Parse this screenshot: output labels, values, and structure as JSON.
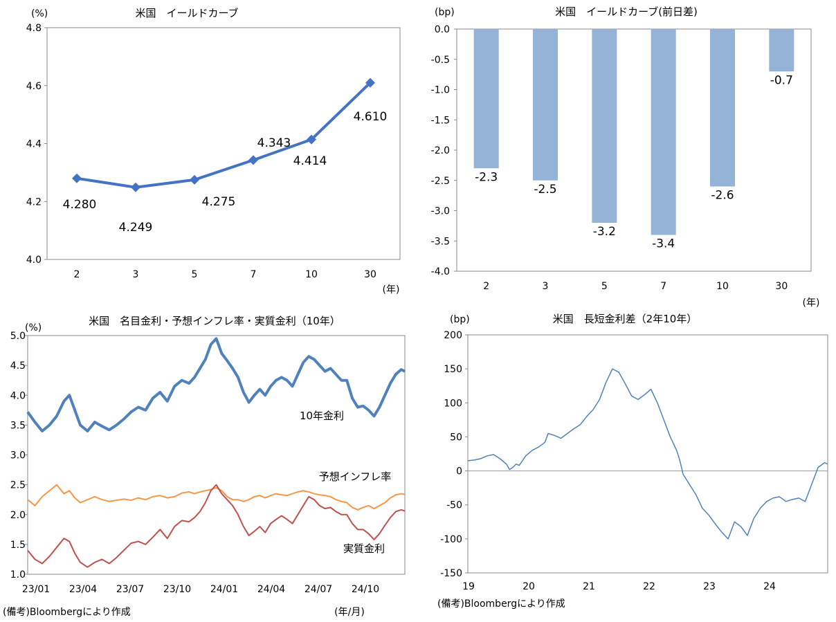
{
  "chart_data": [
    {
      "type": "line",
      "title": "米国　イールドカーブ",
      "ylabel": "(%)",
      "xlabel": "(年)",
      "categories": [
        "2",
        "3",
        "5",
        "7",
        "10",
        "30"
      ],
      "values": [
        4.28,
        4.249,
        4.275,
        4.343,
        4.414,
        4.61
      ],
      "value_labels": [
        "4.280",
        "4.249",
        "4.275",
        "4.343",
        "4.414",
        "4.610"
      ],
      "yticks": [
        "4.0",
        "4.2",
        "4.4",
        "4.6",
        "4.8"
      ],
      "ylim": [
        4.0,
        4.8
      ],
      "color": "#4472c4",
      "grid": false
    },
    {
      "type": "bar",
      "title": "米国　イールドカーブ(前日差)",
      "ylabel": "(bp)",
      "xlabel": "(年)",
      "categories": [
        "2",
        "3",
        "5",
        "7",
        "10",
        "30"
      ],
      "values": [
        -2.3,
        -2.5,
        -3.2,
        -3.4,
        -2.6,
        -0.7
      ],
      "value_labels": [
        "-2.3",
        "-2.5",
        "-3.2",
        "-3.4",
        "-2.6",
        "-0.7"
      ],
      "yticks": [
        "0.0",
        "-0.5",
        "-1.0",
        "-1.5",
        "-2.0",
        "-2.5",
        "-3.0",
        "-3.5",
        "-4.0"
      ],
      "ylim": [
        -4.0,
        0.0
      ],
      "color": "#95b3d7",
      "grid": false
    },
    {
      "type": "line",
      "title": "米国　名目金利・予想インフレ率・実質金利（10年）",
      "ylabel": "(%)",
      "xlabel": "(年/月)",
      "note": "(備考)Bloombergにより作成",
      "xticks": [
        "23/01",
        "23/04",
        "23/07",
        "23/10",
        "24/01",
        "24/04",
        "24/07",
        "24/10"
      ],
      "yticks": [
        "1.0",
        "1.5",
        "2.0",
        "2.5",
        "3.0",
        "3.5",
        "4.0",
        "4.5",
        "5.0"
      ],
      "ylim": [
        1.0,
        5.0
      ],
      "grid": false,
      "series": [
        {
          "name": "10年金利",
          "color": "#4f81bd",
          "points": [
            [
              0,
              3.72
            ],
            [
              4,
              3.55
            ],
            [
              8,
              3.4
            ],
            [
              12,
              3.5
            ],
            [
              16,
              3.65
            ],
            [
              20,
              3.9
            ],
            [
              23,
              4.0
            ],
            [
              26,
              3.75
            ],
            [
              29,
              3.5
            ],
            [
              33,
              3.4
            ],
            [
              37,
              3.55
            ],
            [
              41,
              3.48
            ],
            [
              45,
              3.42
            ],
            [
              49,
              3.5
            ],
            [
              53,
              3.6
            ],
            [
              57,
              3.72
            ],
            [
              61,
              3.8
            ],
            [
              65,
              3.75
            ],
            [
              69,
              3.95
            ],
            [
              73,
              4.05
            ],
            [
              77,
              3.9
            ],
            [
              81,
              4.15
            ],
            [
              85,
              4.25
            ],
            [
              89,
              4.2
            ],
            [
              92,
              4.3
            ],
            [
              95,
              4.45
            ],
            [
              98,
              4.6
            ],
            [
              101,
              4.85
            ],
            [
              104,
              4.95
            ],
            [
              107,
              4.7
            ],
            [
              110,
              4.58
            ],
            [
              113,
              4.45
            ],
            [
              116,
              4.3
            ],
            [
              119,
              4.05
            ],
            [
              122,
              3.88
            ],
            [
              125,
              4.0
            ],
            [
              128,
              4.1
            ],
            [
              131,
              4.0
            ],
            [
              134,
              4.15
            ],
            [
              137,
              4.25
            ],
            [
              140,
              4.3
            ],
            [
              143,
              4.25
            ],
            [
              146,
              4.15
            ],
            [
              149,
              4.35
            ],
            [
              152,
              4.55
            ],
            [
              155,
              4.65
            ],
            [
              158,
              4.6
            ],
            [
              161,
              4.5
            ],
            [
              164,
              4.4
            ],
            [
              167,
              4.45
            ],
            [
              170,
              4.35
            ],
            [
              173,
              4.25
            ],
            [
              176,
              4.25
            ],
            [
              179,
              3.95
            ],
            [
              182,
              3.8
            ],
            [
              185,
              3.82
            ],
            [
              188,
              3.75
            ],
            [
              191,
              3.65
            ],
            [
              194,
              3.8
            ],
            [
              197,
              4.0
            ],
            [
              200,
              4.2
            ],
            [
              203,
              4.35
            ],
            [
              206,
              4.43
            ],
            [
              208,
              4.4
            ]
          ]
        },
        {
          "name": "予想インフレ率",
          "color": "#f79646",
          "points": [
            [
              0,
              2.25
            ],
            [
              4,
              2.15
            ],
            [
              8,
              2.3
            ],
            [
              12,
              2.4
            ],
            [
              16,
              2.5
            ],
            [
              20,
              2.35
            ],
            [
              23,
              2.4
            ],
            [
              26,
              2.28
            ],
            [
              29,
              2.2
            ],
            [
              33,
              2.25
            ],
            [
              37,
              2.3
            ],
            [
              41,
              2.25
            ],
            [
              45,
              2.22
            ],
            [
              49,
              2.24
            ],
            [
              53,
              2.26
            ],
            [
              57,
              2.24
            ],
            [
              61,
              2.28
            ],
            [
              65,
              2.25
            ],
            [
              69,
              2.3
            ],
            [
              73,
              2.32
            ],
            [
              77,
              2.28
            ],
            [
              81,
              2.3
            ],
            [
              85,
              2.36
            ],
            [
              89,
              2.38
            ],
            [
              92,
              2.35
            ],
            [
              95,
              2.38
            ],
            [
              98,
              2.4
            ],
            [
              101,
              2.42
            ],
            [
              104,
              2.45
            ],
            [
              107,
              2.4
            ],
            [
              110,
              2.3
            ],
            [
              113,
              2.25
            ],
            [
              116,
              2.25
            ],
            [
              119,
              2.22
            ],
            [
              122,
              2.25
            ],
            [
              125,
              2.3
            ],
            [
              128,
              2.32
            ],
            [
              131,
              2.28
            ],
            [
              134,
              2.32
            ],
            [
              137,
              2.35
            ],
            [
              140,
              2.33
            ],
            [
              143,
              2.32
            ],
            [
              146,
              2.35
            ],
            [
              149,
              2.38
            ],
            [
              152,
              2.4
            ],
            [
              155,
              2.38
            ],
            [
              158,
              2.35
            ],
            [
              161,
              2.33
            ],
            [
              164,
              2.32
            ],
            [
              167,
              2.3
            ],
            [
              170,
              2.25
            ],
            [
              173,
              2.22
            ],
            [
              176,
              2.2
            ],
            [
              179,
              2.12
            ],
            [
              182,
              2.08
            ],
            [
              185,
              2.12
            ],
            [
              188,
              2.15
            ],
            [
              191,
              2.1
            ],
            [
              194,
              2.15
            ],
            [
              197,
              2.2
            ],
            [
              200,
              2.28
            ],
            [
              203,
              2.33
            ],
            [
              206,
              2.35
            ],
            [
              208,
              2.34
            ]
          ]
        },
        {
          "name": "実質金利",
          "color": "#c0504d",
          "points": [
            [
              0,
              1.4
            ],
            [
              4,
              1.25
            ],
            [
              8,
              1.18
            ],
            [
              12,
              1.3
            ],
            [
              16,
              1.45
            ],
            [
              20,
              1.6
            ],
            [
              23,
              1.55
            ],
            [
              26,
              1.35
            ],
            [
              29,
              1.2
            ],
            [
              33,
              1.12
            ],
            [
              37,
              1.2
            ],
            [
              41,
              1.25
            ],
            [
              45,
              1.18
            ],
            [
              49,
              1.28
            ],
            [
              53,
              1.4
            ],
            [
              57,
              1.52
            ],
            [
              61,
              1.55
            ],
            [
              65,
              1.5
            ],
            [
              69,
              1.62
            ],
            [
              73,
              1.75
            ],
            [
              77,
              1.6
            ],
            [
              81,
              1.8
            ],
            [
              85,
              1.9
            ],
            [
              89,
              1.88
            ],
            [
              92,
              1.95
            ],
            [
              95,
              2.05
            ],
            [
              98,
              2.2
            ],
            [
              101,
              2.4
            ],
            [
              104,
              2.5
            ],
            [
              107,
              2.35
            ],
            [
              110,
              2.25
            ],
            [
              113,
              2.15
            ],
            [
              116,
              2.0
            ],
            [
              119,
              1.8
            ],
            [
              122,
              1.65
            ],
            [
              125,
              1.72
            ],
            [
              128,
              1.8
            ],
            [
              131,
              1.7
            ],
            [
              134,
              1.85
            ],
            [
              137,
              1.92
            ],
            [
              140,
              1.98
            ],
            [
              143,
              1.92
            ],
            [
              146,
              1.85
            ],
            [
              149,
              2.0
            ],
            [
              152,
              2.15
            ],
            [
              155,
              2.3
            ],
            [
              158,
              2.25
            ],
            [
              161,
              2.15
            ],
            [
              164,
              2.1
            ],
            [
              167,
              2.12
            ],
            [
              170,
              2.05
            ],
            [
              173,
              2.0
            ],
            [
              176,
              2.0
            ],
            [
              179,
              1.85
            ],
            [
              182,
              1.75
            ],
            [
              185,
              1.75
            ],
            [
              188,
              1.68
            ],
            [
              191,
              1.58
            ],
            [
              194,
              1.68
            ],
            [
              197,
              1.82
            ],
            [
              200,
              1.95
            ],
            [
              203,
              2.05
            ],
            [
              206,
              2.08
            ],
            [
              208,
              2.06
            ]
          ]
        }
      ]
    },
    {
      "type": "line",
      "title": "米国　長短金利差（2年10年）",
      "ylabel": "(bp)",
      "note": "(備考)Bloombergにより作成",
      "xticks": [
        "19",
        "20",
        "21",
        "22",
        "23",
        "24"
      ],
      "yticks": [
        "200",
        "150",
        "100",
        "50",
        "0",
        "-50",
        "-100",
        "-150"
      ],
      "ylim": [
        -150,
        200
      ],
      "grid": false,
      "series": [
        {
          "name": "",
          "color": "#4f81bd",
          "points": [
            [
              0,
              15
            ],
            [
              2,
              16
            ],
            [
              4,
              18
            ],
            [
              6,
              22
            ],
            [
              8,
              24
            ],
            [
              10,
              18
            ],
            [
              12,
              10
            ],
            [
              13,
              2
            ],
            [
              14,
              5
            ],
            [
              15,
              10
            ],
            [
              16,
              8
            ],
            [
              18,
              22
            ],
            [
              20,
              30
            ],
            [
              22,
              35
            ],
            [
              24,
              42
            ],
            [
              25,
              55
            ],
            [
              27,
              52
            ],
            [
              29,
              48
            ],
            [
              31,
              55
            ],
            [
              33,
              62
            ],
            [
              35,
              68
            ],
            [
              37,
              80
            ],
            [
              39,
              90
            ],
            [
              41,
              105
            ],
            [
              43,
              130
            ],
            [
              45,
              150
            ],
            [
              47,
              145
            ],
            [
              49,
              128
            ],
            [
              51,
              110
            ],
            [
              53,
              105
            ],
            [
              55,
              112
            ],
            [
              57,
              120
            ],
            [
              59,
              100
            ],
            [
              61,
              75
            ],
            [
              63,
              50
            ],
            [
              65,
              30
            ],
            [
              66,
              15
            ],
            [
              67,
              -5
            ],
            [
              69,
              -20
            ],
            [
              71,
              -35
            ],
            [
              73,
              -55
            ],
            [
              75,
              -65
            ],
            [
              77,
              -78
            ],
            [
              79,
              -90
            ],
            [
              81,
              -100
            ],
            [
              83,
              -75
            ],
            [
              85,
              -82
            ],
            [
              87,
              -95
            ],
            [
              89,
              -70
            ],
            [
              91,
              -55
            ],
            [
              93,
              -45
            ],
            [
              95,
              -40
            ],
            [
              97,
              -38
            ],
            [
              99,
              -45
            ],
            [
              101,
              -42
            ],
            [
              103,
              -40
            ],
            [
              105,
              -45
            ],
            [
              107,
              -20
            ],
            [
              109,
              5
            ],
            [
              111,
              12
            ],
            [
              112,
              10
            ]
          ]
        }
      ]
    }
  ]
}
